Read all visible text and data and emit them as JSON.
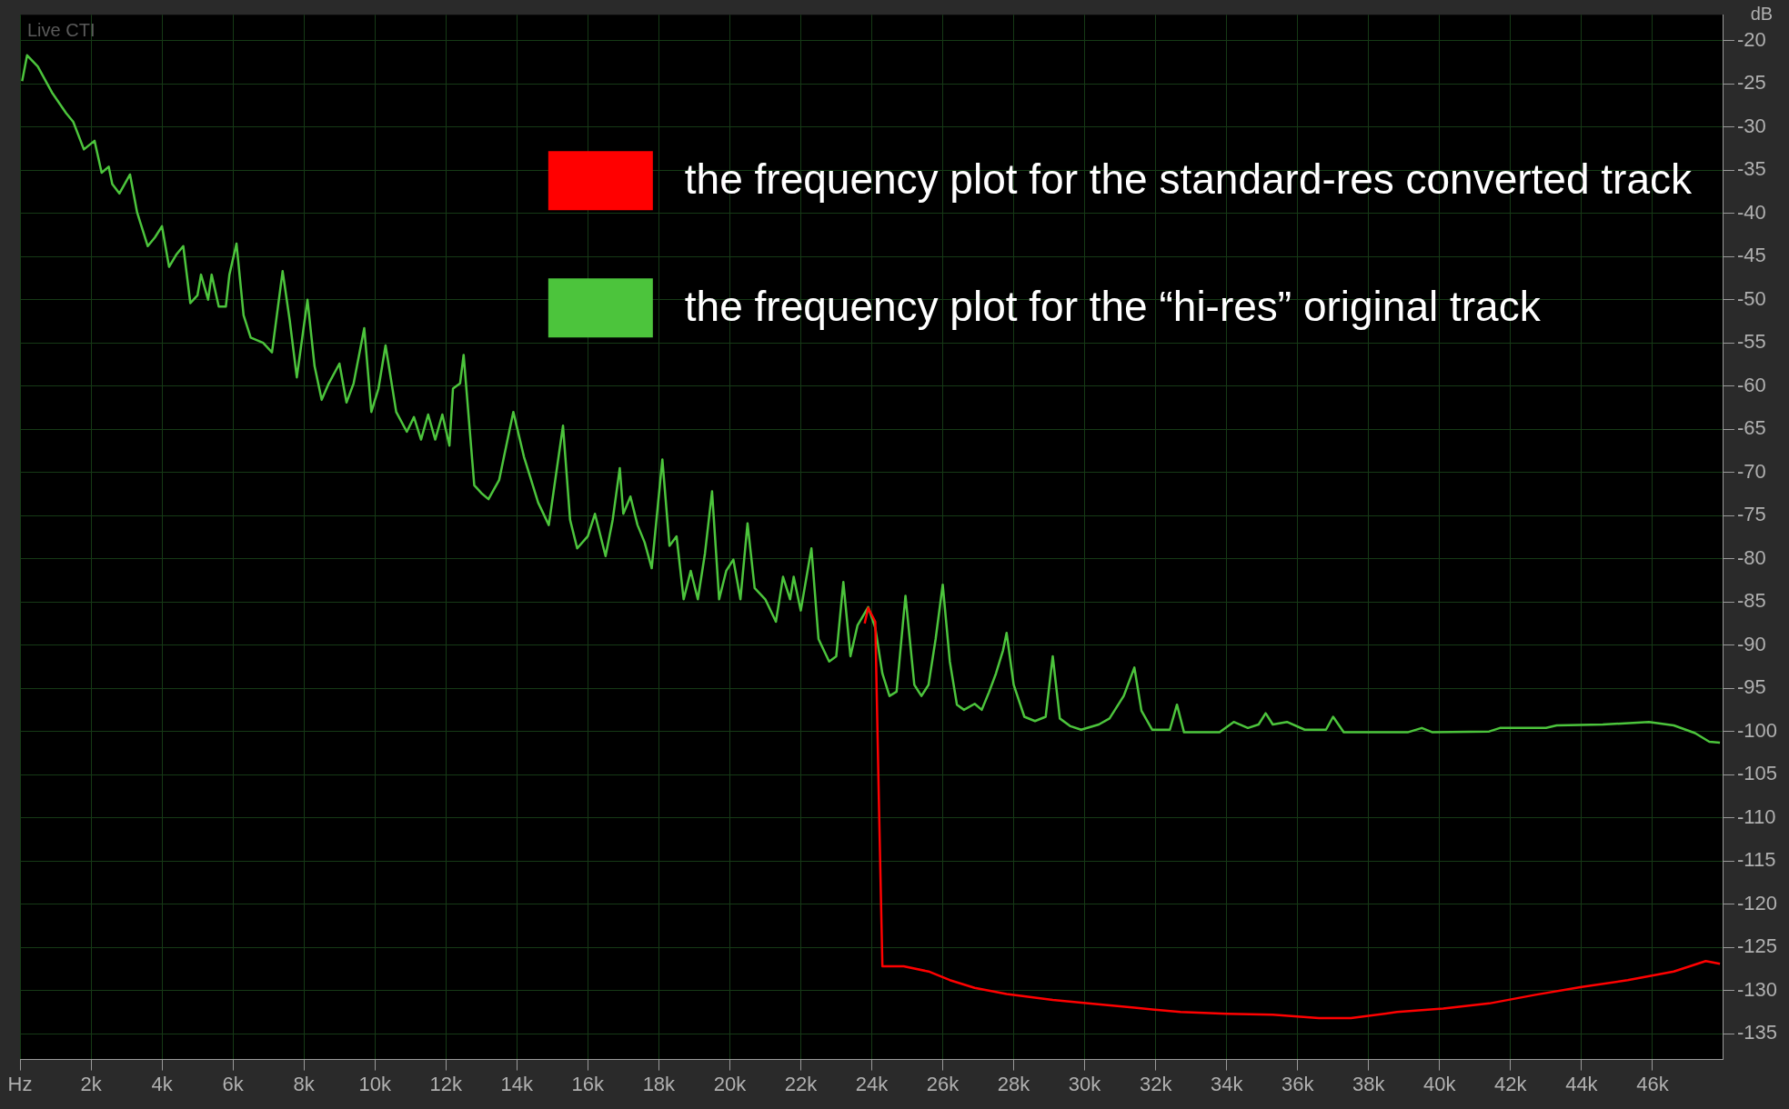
{
  "chart_data": {
    "type": "line",
    "ylabel": "dB",
    "annotations": [
      "Live CTI"
    ],
    "xlim": [
      0,
      48000
    ],
    "xticks": [
      {
        "value": 0,
        "label": "Hz"
      },
      {
        "value": 2000,
        "label": "2k"
      },
      {
        "value": 4000,
        "label": "4k"
      },
      {
        "value": 6000,
        "label": "6k"
      },
      {
        "value": 8000,
        "label": "8k"
      },
      {
        "value": 10000,
        "label": "10k"
      },
      {
        "value": 12000,
        "label": "12k"
      },
      {
        "value": 14000,
        "label": "14k"
      },
      {
        "value": 16000,
        "label": "16k"
      },
      {
        "value": 18000,
        "label": "18k"
      },
      {
        "value": 20000,
        "label": "20k"
      },
      {
        "value": 22000,
        "label": "22k"
      },
      {
        "value": 24000,
        "label": "24k"
      },
      {
        "value": 26000,
        "label": "26k"
      },
      {
        "value": 28000,
        "label": "28k"
      },
      {
        "value": 30000,
        "label": "30k"
      },
      {
        "value": 32000,
        "label": "32k"
      },
      {
        "value": 34000,
        "label": "34k"
      },
      {
        "value": 36000,
        "label": "36k"
      },
      {
        "value": 38000,
        "label": "38k"
      },
      {
        "value": 40000,
        "label": "40k"
      },
      {
        "value": 42000,
        "label": "42k"
      },
      {
        "value": 44000,
        "label": "44k"
      },
      {
        "value": 46000,
        "label": "46k"
      }
    ],
    "ylim": [
      -138,
      -17
    ],
    "yticks": [
      -20,
      -25,
      -30,
      -35,
      -40,
      -45,
      -50,
      -55,
      -60,
      -65,
      -70,
      -75,
      -80,
      -85,
      -90,
      -95,
      -100,
      -105,
      -110,
      -115,
      -120,
      -125,
      -130,
      -135
    ],
    "grid": true,
    "legend": "top right",
    "marker": "none",
    "line_style": "solid",
    "series": [
      {
        "name": "the frequency plot for the standard-res converted track",
        "color": "#ff0000",
        "x": [
          23800,
          23900,
          24100,
          24200,
          24300,
          24900,
          25600,
          26200,
          26900,
          27800,
          29100,
          30100,
          31400,
          32700,
          34000,
          35300,
          36600,
          37500,
          38800,
          40100,
          41400,
          42700,
          44000,
          45300,
          46600,
          47500,
          47900
        ],
        "values": [
          -87.5,
          -85.7,
          -87.3,
          -107.8,
          -127.2,
          -127.2,
          -127.8,
          -128.8,
          -129.7,
          -130.4,
          -131.1,
          -131.5,
          -132,
          -132.5,
          -132.7,
          -132.8,
          -133.2,
          -133.2,
          -132.5,
          -132.1,
          -131.5,
          -130.5,
          -129.6,
          -128.8,
          -127.8,
          -126.6,
          -126.9
        ]
      },
      {
        "name": "the frequency plot for the “hi-res” original track",
        "color": "#4cc43c",
        "x": [
          60,
          200,
          500,
          900,
          1300,
          1500,
          1800,
          2100,
          2300,
          2500,
          2600,
          2800,
          3100,
          3300,
          3400,
          3600,
          3800,
          4000,
          4200,
          4400,
          4600,
          4800,
          5000,
          5100,
          5300,
          5400,
          5600,
          5800,
          5900,
          6100,
          6300,
          6500,
          6850,
          7100,
          7400,
          7600,
          7800,
          8100,
          8300,
          8500,
          8700,
          9000,
          9200,
          9400,
          9700,
          9900,
          10100,
          10300,
          10600,
          10900,
          11100,
          11300,
          11500,
          11700,
          11900,
          12100,
          12200,
          12400,
          12500,
          12800,
          13000,
          13200,
          13500,
          13900,
          14200,
          14600,
          14900,
          15300,
          15500,
          15700,
          16000,
          16200,
          16500,
          16700,
          16900,
          17000,
          17200,
          17400,
          17600,
          17800,
          18100,
          18300,
          18500,
          18700,
          18900,
          19100,
          19300,
          19500,
          19700,
          19900,
          20100,
          20300,
          20500,
          20700,
          21000,
          21300,
          21500,
          21700,
          21800,
          22000,
          22300,
          22500,
          22800,
          23000,
          23200,
          23400,
          23600,
          23900,
          24100,
          24300,
          24500,
          24700,
          24950,
          25200,
          25400,
          25600,
          25800,
          26000,
          26200,
          26400,
          26600,
          26900,
          27100,
          27300,
          27500,
          27700,
          27800,
          28000,
          28300,
          28600,
          28900,
          29100,
          29300,
          29600,
          29900,
          30400,
          30700,
          31100,
          31400,
          31600,
          31900,
          32400,
          32600,
          32800,
          33800,
          34200,
          34600,
          34900,
          35100,
          35300,
          35700,
          36200,
          36800,
          37000,
          37300,
          39100,
          39500,
          39800,
          41400,
          41700,
          43000,
          43300,
          44600,
          45900,
          46600,
          47200,
          47600,
          47900
        ],
        "values": [
          -24.7,
          -21.7,
          -23,
          -26,
          -28.4,
          -29.4,
          -32.6,
          -31.6,
          -35.3,
          -34.6,
          -36.6,
          -37.7,
          -35.5,
          -39.9,
          -41.2,
          -43.8,
          -42.8,
          -41.5,
          -46.2,
          -44.8,
          -43.8,
          -50.4,
          -49.5,
          -47.1,
          -50,
          -47.1,
          -50.8,
          -50.8,
          -47.1,
          -43.5,
          -51.8,
          -54.4,
          -55,
          -56.1,
          -46.7,
          -52.4,
          -59,
          -50,
          -57.7,
          -61.6,
          -59.7,
          -57.4,
          -61.9,
          -59.7,
          -53.3,
          -63,
          -60.3,
          -55.3,
          -63,
          -65.3,
          -63.6,
          -66.2,
          -63.3,
          -66.2,
          -63.3,
          -66.9,
          -60.3,
          -59.7,
          -56.4,
          -71.5,
          -72.4,
          -73.1,
          -70.9,
          -63,
          -68.2,
          -73.5,
          -76.1,
          -64.6,
          -75.5,
          -78.8,
          -77.4,
          -74.8,
          -79.7,
          -75.5,
          -69.5,
          -74.8,
          -72.8,
          -76.1,
          -78.1,
          -81.1,
          -68.5,
          -78.5,
          -77.4,
          -84.7,
          -81.4,
          -84.7,
          -79.4,
          -72.2,
          -84.7,
          -81.4,
          -80.1,
          -84.7,
          -75.9,
          -83.4,
          -84.7,
          -87.3,
          -82.1,
          -84.7,
          -82.1,
          -86,
          -78.8,
          -89.3,
          -91.9,
          -91.3,
          -82.7,
          -91.3,
          -87.7,
          -85.6,
          -88,
          -93.3,
          -95.9,
          -95.4,
          -84.3,
          -94.6,
          -95.9,
          -94.6,
          -89.3,
          -83,
          -91.9,
          -96.9,
          -97.5,
          -96.8,
          -97.5,
          -95.5,
          -93.3,
          -90.6,
          -88.6,
          -94.6,
          -98.3,
          -98.8,
          -98.3,
          -91.3,
          -98.5,
          -99.4,
          -99.8,
          -99.2,
          -98.5,
          -95.9,
          -92.6,
          -97.6,
          -99.8,
          -99.8,
          -96.9,
          -100.1,
          -100.1,
          -98.9,
          -99.6,
          -99.2,
          -97.9,
          -99.2,
          -98.9,
          -99.8,
          -99.8,
          -98.3,
          -100.1,
          -100.1,
          -99.6,
          -100.1,
          -100,
          -99.6,
          -99.6,
          -99.3,
          -99.2,
          -98.9,
          -99.3,
          -100.2,
          -101.2,
          -101.3
        ]
      }
    ]
  }
}
